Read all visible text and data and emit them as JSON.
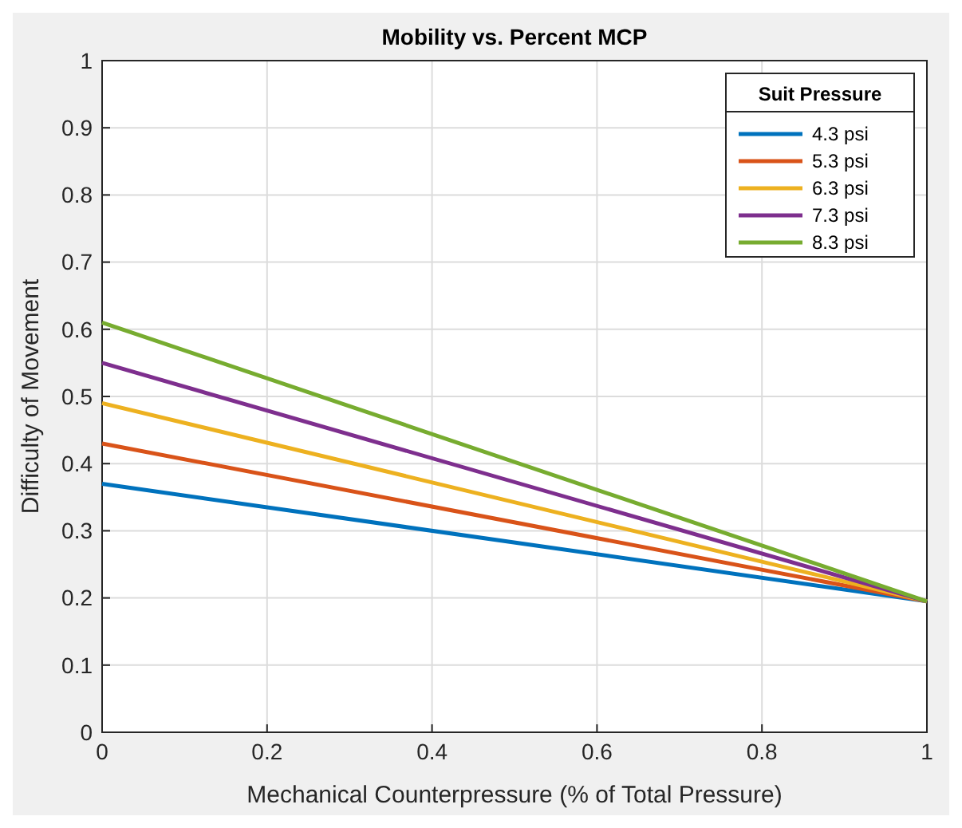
{
  "chart_data": {
    "type": "line",
    "title": "Mobility vs. Percent MCP",
    "xlabel": "Mechanical Counterpressure (% of Total Pressure)",
    "ylabel": "Difficulty of Movement",
    "legend_title": "Suit Pressure",
    "x": [
      0,
      1
    ],
    "xlim": [
      0,
      1
    ],
    "xticks": [
      0,
      0.2,
      0.4,
      0.6,
      0.8,
      1
    ],
    "ylim": [
      0,
      1
    ],
    "yticks": [
      0,
      0.1,
      0.2,
      0.3,
      0.4,
      0.5,
      0.6,
      0.7,
      0.8,
      0.9,
      1
    ],
    "grid": true,
    "legend": "top right",
    "line_style": "solid",
    "marker": "none",
    "series": [
      {
        "name": "4.3 psi",
        "color": "#0072bd",
        "values": [
          0.37,
          0.195
        ]
      },
      {
        "name": "5.3 psi",
        "color": "#d95319",
        "values": [
          0.43,
          0.195
        ]
      },
      {
        "name": "6.3 psi",
        "color": "#edb120",
        "values": [
          0.49,
          0.195
        ]
      },
      {
        "name": "7.3 psi",
        "color": "#7e2f8e",
        "values": [
          0.55,
          0.195
        ]
      },
      {
        "name": "8.3 psi",
        "color": "#77ac30",
        "values": [
          0.61,
          0.195
        ]
      }
    ]
  }
}
